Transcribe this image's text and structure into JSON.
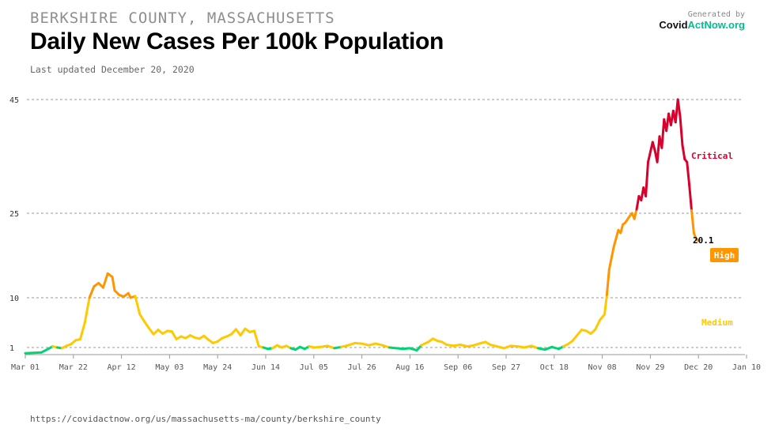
{
  "header": {
    "location": "BERKSHIRE COUNTY, MASSACHUSETTS",
    "title": "Daily New Cases Per 100k Population",
    "updated": "Last updated December 20, 2020",
    "generated_by": "Generated by",
    "brand_part1": "Covid",
    "brand_part2": "ActNow.org"
  },
  "footer": {
    "url": "https://covidactnow.org/us/massachusetts-ma/county/berkshire_county"
  },
  "colors": {
    "low": "#00d474",
    "medium": "#ffc900",
    "high": "#ff9600",
    "critical": "#d9002c",
    "grid": "#999999",
    "axis": "#999999",
    "tick_text": "#555555"
  },
  "chart_data": {
    "type": "line",
    "title": "Daily New Cases Per 100k Population",
    "xlabel": "",
    "ylabel": "",
    "x_start": "Mar 01 2020",
    "x_ticks": [
      "Mar 01",
      "Mar 22",
      "Apr 12",
      "May 03",
      "May 24",
      "Jun 14",
      "Jul 05",
      "Jul 26",
      "Aug 16",
      "Sep 06",
      "Sep 27",
      "Oct 18",
      "Nov 08",
      "Nov 29",
      "Dec 20",
      "Jan 10"
    ],
    "y_ticks": [
      1,
      10,
      25,
      45
    ],
    "ylim": [
      0,
      45
    ],
    "grid": true,
    "thresholds": [
      {
        "value": 1,
        "level": "low"
      },
      {
        "value": 10,
        "level": "medium"
      },
      {
        "value": 25,
        "level": "high"
      }
    ],
    "zone_labels": [
      "Critical",
      "High",
      "Medium"
    ],
    "last_value_label": "20.1",
    "series": [
      {
        "points": [
          [
            "Mar 01",
            0.2
          ],
          [
            "Mar 08",
            0.3
          ],
          [
            "Mar 11",
            0.8
          ],
          [
            "Mar 13",
            1.2
          ],
          [
            "Mar 15",
            1.0
          ],
          [
            "Mar 17",
            0.9
          ],
          [
            "Mar 19",
            1.3
          ],
          [
            "Mar 21",
            1.6
          ],
          [
            "Mar 23",
            2.3
          ],
          [
            "Mar 25",
            2.5
          ],
          [
            "Mar 27",
            5.5
          ],
          [
            "Mar 29",
            10.0
          ],
          [
            "Mar 31",
            12.0
          ],
          [
            "Apr 02",
            12.6
          ],
          [
            "Apr 04",
            11.8
          ],
          [
            "Apr 06",
            14.3
          ],
          [
            "Apr 08",
            13.7
          ],
          [
            "Apr 09",
            11.3
          ],
          [
            "Apr 11",
            10.5
          ],
          [
            "Apr 13",
            10.2
          ],
          [
            "Apr 15",
            10.8
          ],
          [
            "Apr 16",
            10.0
          ],
          [
            "Apr 18",
            10.3
          ],
          [
            "Apr 20",
            7.0
          ],
          [
            "Apr 22",
            5.7
          ],
          [
            "Apr 24",
            4.5
          ],
          [
            "Apr 26",
            3.4
          ],
          [
            "Apr 28",
            4.2
          ],
          [
            "Apr 30",
            3.5
          ],
          [
            "May 02",
            4.0
          ],
          [
            "May 04",
            3.9
          ],
          [
            "May 06",
            2.5
          ],
          [
            "May 08",
            3.0
          ],
          [
            "May 10",
            2.7
          ],
          [
            "May 12",
            3.2
          ],
          [
            "May 14",
            2.8
          ],
          [
            "May 16",
            2.6
          ],
          [
            "May 18",
            3.1
          ],
          [
            "May 20",
            2.4
          ],
          [
            "May 22",
            1.8
          ],
          [
            "May 24",
            2.1
          ],
          [
            "May 26",
            2.7
          ],
          [
            "May 28",
            3.0
          ],
          [
            "May 30",
            3.4
          ],
          [
            "Jun 01",
            4.3
          ],
          [
            "Jun 03",
            3.2
          ],
          [
            "Jun 05",
            4.4
          ],
          [
            "Jun 07",
            3.8
          ],
          [
            "Jun 09",
            4.0
          ],
          [
            "Jun 11",
            1.2
          ],
          [
            "Jun 13",
            1.0
          ],
          [
            "Jun 15",
            0.8
          ],
          [
            "Jun 17",
            0.9
          ],
          [
            "Jun 19",
            1.4
          ],
          [
            "Jun 21",
            1.0
          ],
          [
            "Jun 23",
            1.3
          ],
          [
            "Jun 25",
            0.9
          ],
          [
            "Jun 27",
            0.7
          ],
          [
            "Jun 29",
            1.1
          ],
          [
            "Jul 01",
            0.8
          ],
          [
            "Jul 03",
            1.2
          ],
          [
            "Jul 05",
            1.0
          ],
          [
            "Jul 08",
            1.1
          ],
          [
            "Jul 11",
            1.3
          ],
          [
            "Jul 14",
            0.9
          ],
          [
            "Jul 17",
            1.1
          ],
          [
            "Jul 20",
            1.4
          ],
          [
            "Jul 23",
            1.8
          ],
          [
            "Jul 26",
            1.7
          ],
          [
            "Jul 29",
            1.4
          ],
          [
            "Aug 01",
            1.7
          ],
          [
            "Aug 04",
            1.4
          ],
          [
            "Aug 07",
            1.0
          ],
          [
            "Aug 10",
            0.9
          ],
          [
            "Aug 13",
            0.8
          ],
          [
            "Aug 16",
            0.9
          ],
          [
            "Aug 19",
            0.6
          ],
          [
            "Aug 21",
            1.4
          ],
          [
            "Aug 24",
            2.0
          ],
          [
            "Aug 26",
            2.6
          ],
          [
            "Aug 28",
            2.2
          ],
          [
            "Aug 30",
            2.0
          ],
          [
            "Sep 01",
            1.5
          ],
          [
            "Sep 04",
            1.3
          ],
          [
            "Sep 07",
            1.5
          ],
          [
            "Sep 10",
            1.2
          ],
          [
            "Sep 13",
            1.4
          ],
          [
            "Sep 16",
            1.8
          ],
          [
            "Sep 18",
            2.0
          ],
          [
            "Sep 20",
            1.5
          ],
          [
            "Sep 23",
            1.2
          ],
          [
            "Sep 26",
            0.9
          ],
          [
            "Sep 29",
            1.3
          ],
          [
            "Oct 02",
            1.2
          ],
          [
            "Oct 05",
            1.0
          ],
          [
            "Oct 08",
            1.3
          ],
          [
            "Oct 11",
            0.9
          ],
          [
            "Oct 14",
            0.7
          ],
          [
            "Oct 17",
            1.1
          ],
          [
            "Oct 20",
            0.8
          ],
          [
            "Oct 22",
            1.2
          ],
          [
            "Oct 24",
            1.6
          ],
          [
            "Oct 26",
            2.2
          ],
          [
            "Oct 28",
            3.2
          ],
          [
            "Oct 30",
            4.2
          ],
          [
            "Nov 01",
            4.0
          ],
          [
            "Nov 03",
            3.5
          ],
          [
            "Nov 05",
            4.3
          ],
          [
            "Nov 07",
            6.0
          ],
          [
            "Nov 09",
            7.0
          ],
          [
            "Nov 10",
            10.5
          ],
          [
            "Nov 11",
            15.0
          ],
          [
            "Nov 13",
            19.0
          ],
          [
            "Nov 15",
            22.0
          ],
          [
            "Nov 16",
            21.5
          ],
          [
            "Nov 17",
            23.0
          ],
          [
            "Nov 18",
            23.3
          ],
          [
            "Nov 20",
            24.5
          ],
          [
            "Nov 21",
            25.0
          ],
          [
            "Nov 22",
            24.0
          ],
          [
            "Nov 23",
            25.7
          ],
          [
            "Nov 24",
            28.0
          ],
          [
            "Nov 25",
            27.3
          ],
          [
            "Nov 26",
            29.5
          ],
          [
            "Nov 27",
            28.0
          ],
          [
            "Nov 28",
            34.0
          ],
          [
            "Nov 30",
            37.5
          ],
          [
            "Dec 01",
            36.0
          ],
          [
            "Dec 02",
            34.0
          ],
          [
            "Dec 03",
            38.5
          ],
          [
            "Dec 04",
            36.5
          ],
          [
            "Dec 05",
            41.5
          ],
          [
            "Dec 06",
            39.5
          ],
          [
            "Dec 07",
            42.5
          ],
          [
            "Dec 08",
            40.5
          ],
          [
            "Dec 09",
            43.0
          ],
          [
            "Dec 10",
            41.0
          ],
          [
            "Dec 11",
            45.0
          ],
          [
            "Dec 12",
            42.0
          ],
          [
            "Dec 13",
            37.0
          ],
          [
            "Dec 14",
            34.5
          ],
          [
            "Dec 15",
            34.0
          ],
          [
            "Dec 16",
            30.0
          ],
          [
            "Dec 17",
            25.5
          ],
          [
            "Dec 18",
            21.5
          ],
          [
            "Dec 19",
            20.4
          ],
          [
            "Dec 20",
            20.1
          ]
        ]
      }
    ]
  }
}
